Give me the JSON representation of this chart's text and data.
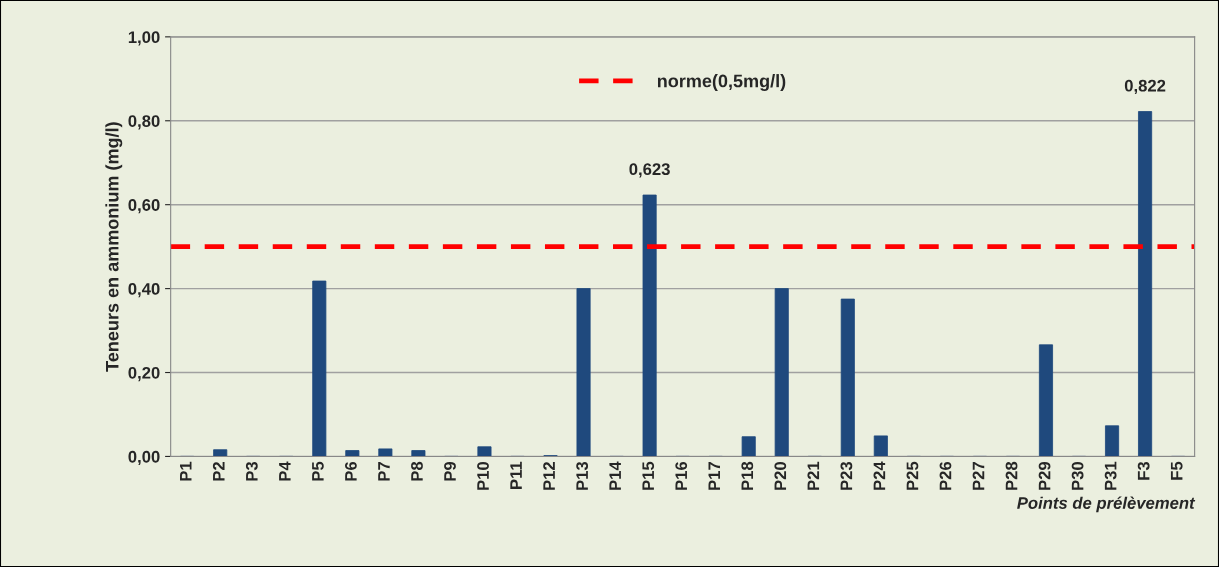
{
  "chart_data": {
    "type": "bar",
    "xlabel": "Points de prélèvement",
    "ylabel": "Teneurs en ammonium (mg/l)",
    "categories": [
      "P1",
      "P2",
      "P3",
      "P4",
      "P5",
      "P6",
      "P7",
      "P8",
      "P9",
      "P10",
      "P11",
      "P12",
      "P13",
      "P14",
      "P15",
      "P16",
      "P17",
      "P18",
      "P20",
      "P21",
      "P23",
      "P24",
      "P25",
      "P26",
      "P27",
      "P28",
      "P29",
      "P30",
      "P31",
      "F3",
      "F5"
    ],
    "values": [
      0,
      0.016,
      0,
      0,
      0.418,
      0.014,
      0.018,
      0.014,
      0,
      0.023,
      0,
      0.002,
      0.4,
      0,
      0.623,
      0,
      0,
      0.047,
      0.4,
      0,
      0.375,
      0.049,
      0,
      0,
      0,
      0,
      0.266,
      0,
      0.073,
      0.822,
      0
    ],
    "value_labels": [
      null,
      null,
      null,
      null,
      null,
      null,
      null,
      null,
      null,
      null,
      null,
      null,
      null,
      null,
      "0,623",
      null,
      null,
      null,
      null,
      null,
      null,
      null,
      null,
      null,
      null,
      null,
      null,
      null,
      null,
      "0,822",
      null
    ],
    "color": "#1f497d",
    "ylim": [
      0,
      1.0
    ],
    "yticks": [
      {
        "value": 0,
        "label": "0,00"
      },
      {
        "value": 0.2,
        "label": "0,20"
      },
      {
        "value": 0.4,
        "label": "0,40"
      },
      {
        "value": 0.6,
        "label": "0,60"
      },
      {
        "value": 0.8,
        "label": "0,80"
      },
      {
        "value": 1.0,
        "label": "1,00"
      }
    ],
    "grid": "y",
    "legend": "top",
    "ref_lines": [
      {
        "axis": "y",
        "value": 0.5,
        "label": "norme(0,5mg/l)",
        "color": "#ff0000",
        "line_style": "dashed"
      }
    ]
  }
}
